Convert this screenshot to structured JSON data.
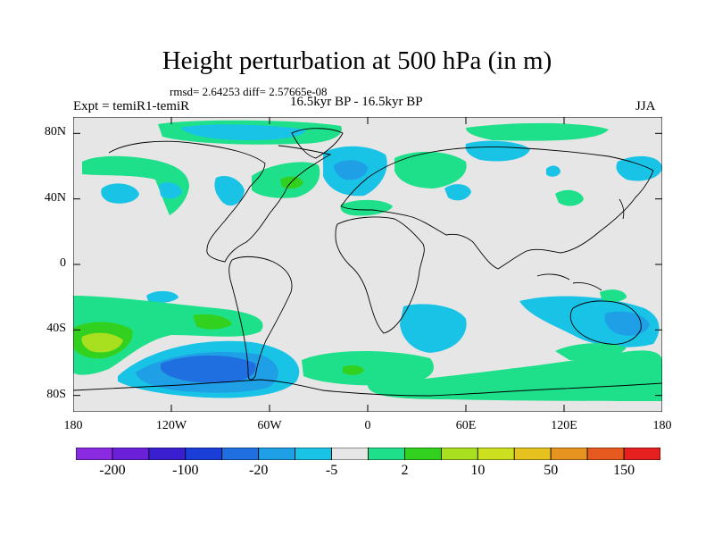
{
  "title": "Height perturbation at 500 hPa (in m)",
  "stats_line": "rmsd= 2.64253 diff= 2.57665e-08",
  "left_label": "Expt = temiR1-temiR",
  "center_label": "16.5kyr BP - 16.5kyr BP",
  "right_label": "JJA",
  "map": {
    "lat_ticks": [
      {
        "label": "80N",
        "lat": 80
      },
      {
        "label": "40N",
        "lat": 40
      },
      {
        "label": "0",
        "lat": 0
      },
      {
        "label": "40S",
        "lat": -40
      },
      {
        "label": "80S",
        "lat": -80
      }
    ],
    "lon_ticks": [
      {
        "label": "180",
        "lon": -180
      },
      {
        "label": "120W",
        "lon": -120
      },
      {
        "label": "60W",
        "lon": -60
      },
      {
        "label": "0",
        "lon": 0
      },
      {
        "label": "60E",
        "lon": 60
      },
      {
        "label": "120E",
        "lon": 120
      },
      {
        "label": "180",
        "lon": 180
      }
    ],
    "lon_range": [
      -180,
      180
    ],
    "lat_range": [
      -90,
      90
    ],
    "background_color": "#e6e6e6"
  },
  "colorbar": {
    "labels": [
      "-200",
      "-100",
      "-20",
      "-5",
      "2",
      "10",
      "50",
      "150"
    ],
    "colors": [
      "#8a2be2",
      "#6a1fd8",
      "#3a1fd0",
      "#1a3fd8",
      "#1f6fe0",
      "#1f9fe6",
      "#19c3e6",
      "#e6e6e6",
      "#1fe08a",
      "#33d11f",
      "#a8e01f",
      "#cce01f",
      "#e6c21f",
      "#e6941f",
      "#e65a1f",
      "#e61f1f"
    ]
  }
}
